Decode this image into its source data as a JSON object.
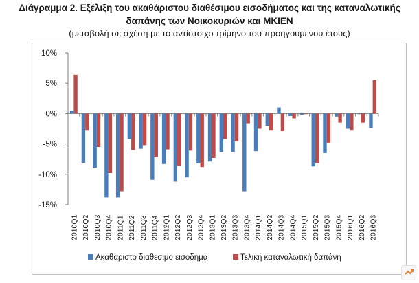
{
  "header": {
    "title_line1": "Διάγραμμα 2. Εξέλιξη του ακαθάριστου διαθέσιμου εισοδήματος και της καταναλωτικής",
    "title_line2": "δαπάνης των Νοικοκυριών και ΜΚΙΕΝ",
    "subtitle": "(μεταβολή σε σχέση με το αντίστοιχο τρίμηνο του προηγούμενου έτους)"
  },
  "chart_data": {
    "type": "bar",
    "categories": [
      "2010Q1",
      "2010Q2",
      "2010Q3",
      "2010Q4",
      "2011Q1",
      "2011Q2",
      "2011Q3",
      "2011Q4",
      "2012Q1",
      "2012Q2",
      "2012Q3",
      "2012Q4",
      "2013Q1",
      "2013Q2",
      "2013Q3",
      "2013Q4",
      "2014Q1",
      "2014Q2",
      "2014Q3",
      "2014Q4",
      "2015Q1",
      "2015Q2",
      "2015Q3",
      "2015Q4",
      "2016Q1",
      "2016Q2",
      "2016Q3"
    ],
    "x_tick_labels": [
      "2010Q1",
      "2010Q2",
      "2010Q3",
      "2010Q4",
      "2011Q1",
      "2011Q2",
      "2011Q3",
      "2011Q4",
      "2012Q1",
      "2012Q2",
      "2012Q3",
      "2012Q4",
      "2013Q1",
      "2013Q2",
      "2013Q3",
      "2013Q4",
      "2014Q1",
      "2014Q2",
      "2014Q3",
      "2014Q4",
      "2015Q1",
      "2015Q2",
      "2015Q3",
      "2015Q4",
      "2016Q1",
      "2016Q2",
      "2016Q3"
    ],
    "series": [
      {
        "name": "Ακαθαριστο διαθεσιμο εισοδημα",
        "color": "#4a7ebb",
        "values": [
          0.5,
          -8.1,
          -8.9,
          -13.8,
          -13.8,
          -4.2,
          -5.8,
          -10.9,
          -8.3,
          -11.2,
          -10.5,
          -8.2,
          -7.9,
          -6.3,
          -6.3,
          -12.8,
          -6.2,
          -2.0,
          1.0,
          -0.4,
          -0.2,
          -8.7,
          -6.5,
          -0.5,
          -2.5,
          -0.1,
          -2.4
        ]
      },
      {
        "name": "Τελική καταναλωτική δαπάνη",
        "color": "#be4b48",
        "values": [
          6.4,
          -2.7,
          -5.5,
          -9.8,
          -12.8,
          -6.0,
          -5.2,
          -7.2,
          -5.9,
          -8.6,
          -6.1,
          -8.8,
          -7.3,
          -4.2,
          -4.6,
          -1.6,
          -2.5,
          -2.7,
          -2.9,
          -0.8,
          -0.1,
          -8.2,
          -4.8,
          -1.5,
          -2.7,
          -1.5,
          5.5
        ]
      }
    ],
    "ylim": [
      -15,
      10
    ],
    "yticks": [
      10,
      5,
      0,
      -5,
      -10,
      -15
    ],
    "ytick_labels": [
      "10%",
      "5%",
      "0%",
      "-5%",
      "-10%",
      "-15%"
    ],
    "grid": false,
    "legend_position": "bottom"
  }
}
